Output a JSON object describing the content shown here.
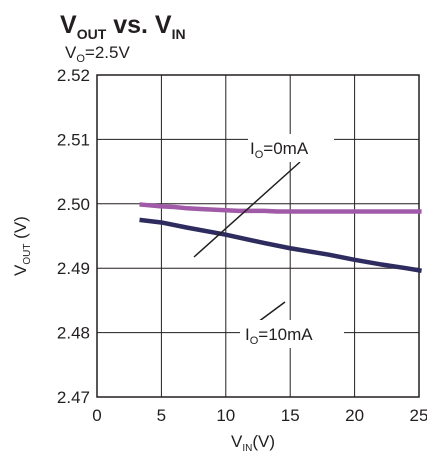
{
  "chart_data": {
    "type": "line",
    "title": {
      "main": "V",
      "sub": "OUT",
      "mid": " vs. V",
      "sub2": "IN"
    },
    "subtitle": {
      "main": "V",
      "sub": "O",
      "rest": "=2.5V"
    },
    "xlabel": {
      "main": "V",
      "sub": "IN",
      "rest": "(V)"
    },
    "ylabel": {
      "main": "V",
      "sub": "OUT",
      "rest": " (V)"
    },
    "xlim": [
      0,
      25
    ],
    "ylim": [
      2.47,
      2.52
    ],
    "xticks": [
      "0",
      "5",
      "10",
      "15",
      "20",
      "25"
    ],
    "yticks": [
      "2.47",
      "2.48",
      "2.49",
      "2.50",
      "2.51",
      "2.52"
    ],
    "grid": true,
    "series": [
      {
        "name": {
          "main": "I",
          "sub": "O",
          "rest": "=0mA"
        },
        "color": "#a05aa8",
        "x": [
          3.3,
          5,
          6,
          7,
          8,
          9,
          10,
          11,
          12,
          13,
          14,
          15,
          17,
          20,
          23,
          25.5
        ],
        "y": [
          2.4999,
          2.4996,
          2.4995,
          2.4993,
          2.4992,
          2.4991,
          2.499,
          2.4989,
          2.4989,
          2.4989,
          2.4988,
          2.4988,
          2.4988,
          2.4988,
          2.4988,
          2.4988
        ]
      },
      {
        "name": {
          "main": "I",
          "sub": "O",
          "rest": "=10mA"
        },
        "color": "#2e2c5e",
        "x": [
          3.3,
          5,
          7,
          10,
          13,
          15,
          18,
          20,
          22,
          24,
          25.5
        ],
        "y": [
          2.4975,
          2.4971,
          2.4963,
          2.4952,
          2.4939,
          2.4931,
          2.4921,
          2.4913,
          2.4906,
          2.49,
          2.4896
        ]
      }
    ]
  }
}
